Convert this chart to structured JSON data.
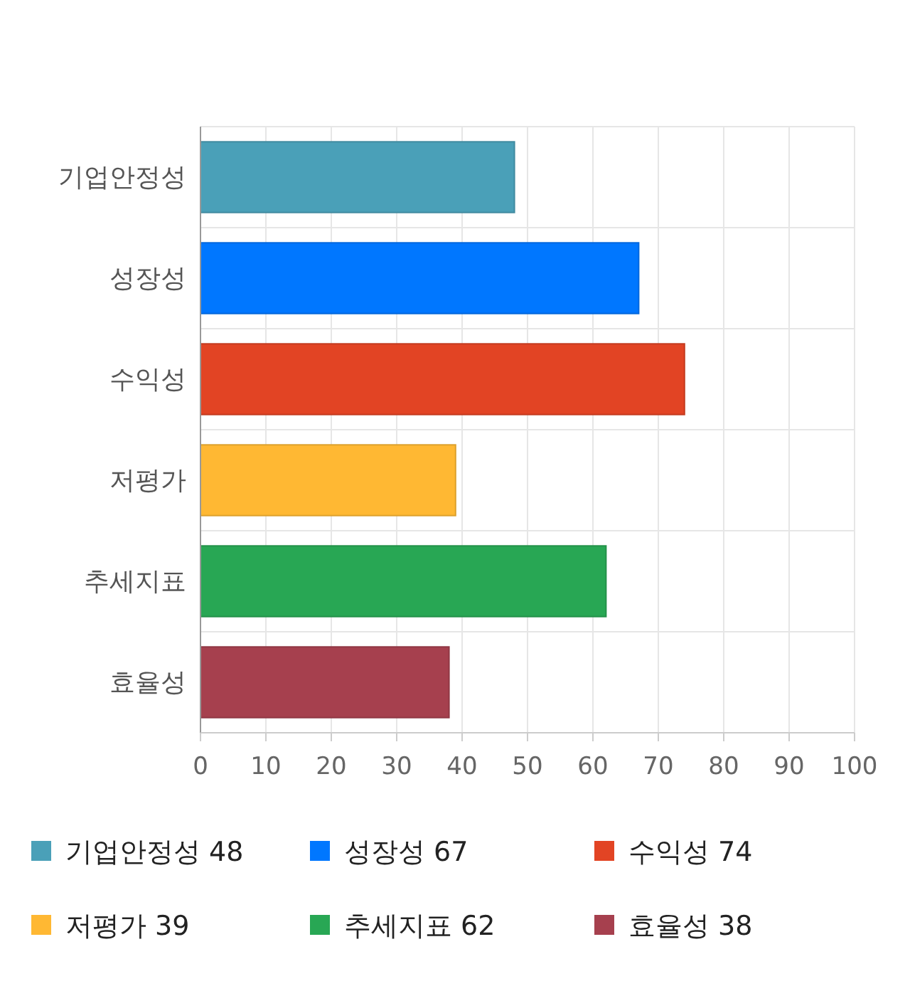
{
  "chart_data": {
    "type": "bar",
    "orientation": "horizontal",
    "categories": [
      "기업안정성",
      "성장성",
      "수익성",
      "저평가",
      "추세지표",
      "효율성"
    ],
    "series": [
      {
        "name": "기업안정성 48",
        "color": "#4aa0b8",
        "values": [
          48,
          null,
          null,
          null,
          null,
          null
        ]
      },
      {
        "name": "성장성 67",
        "color": "#0077ff",
        "values": [
          null,
          67,
          null,
          null,
          null,
          null
        ]
      },
      {
        "name": "수익성 74",
        "color": "#e24424",
        "values": [
          null,
          null,
          74,
          null,
          null,
          null
        ]
      },
      {
        "name": "저평가 39",
        "color": "#ffb833",
        "values": [
          null,
          null,
          null,
          39,
          null,
          null
        ]
      },
      {
        "name": "추세지표 62",
        "color": "#28a754",
        "values": [
          null,
          null,
          null,
          null,
          62,
          null
        ]
      },
      {
        "name": "효율성 38",
        "color": "#a6404e",
        "values": [
          null,
          null,
          null,
          null,
          null,
          38
        ]
      }
    ],
    "xlim": [
      0,
      100
    ],
    "xticks": [
      0,
      10,
      20,
      30,
      40,
      50,
      60,
      70,
      80,
      90,
      100
    ],
    "grid": true,
    "legend": "bottom"
  }
}
